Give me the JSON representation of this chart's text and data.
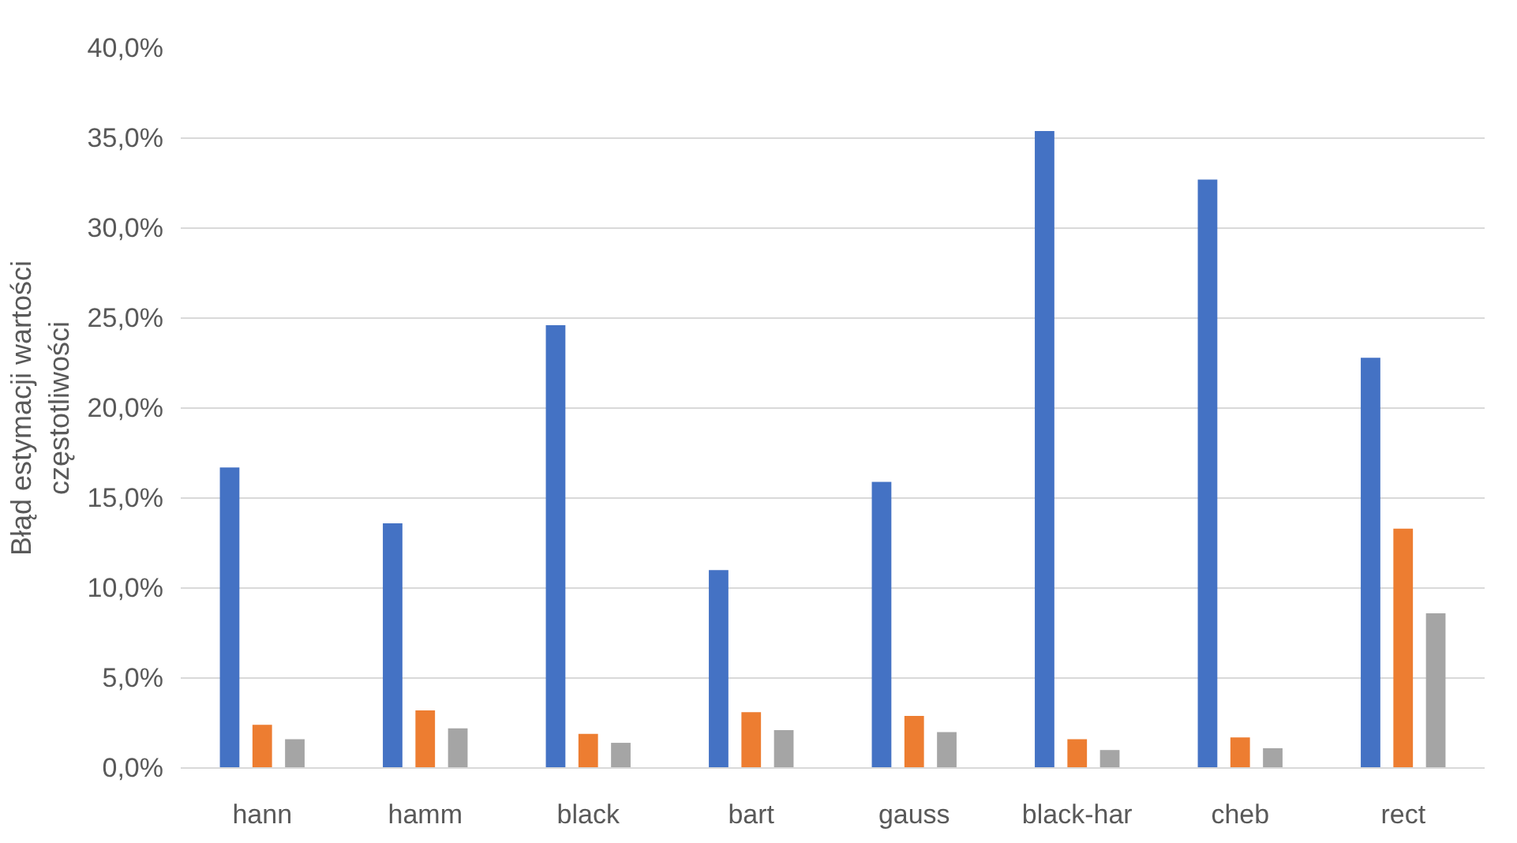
{
  "chart_data": {
    "type": "bar",
    "ylabel": "Błąd estymacji wartości częstotliwości",
    "categories": [
      "hann",
      "hamm",
      "black",
      "bart",
      "gauss",
      "black-har",
      "cheb",
      "rect"
    ],
    "series": [
      {
        "color": "#4472c4",
        "values": [
          16.7,
          13.6,
          24.6,
          11.0,
          15.9,
          35.4,
          32.7,
          22.8
        ]
      },
      {
        "color": "#ed7d31",
        "values": [
          2.4,
          3.2,
          1.9,
          3.1,
          2.9,
          1.6,
          1.7,
          13.3
        ]
      },
      {
        "color": "#a5a5a5",
        "values": [
          1.6,
          2.2,
          1.4,
          2.1,
          2.0,
          1.0,
          1.1,
          8.6
        ]
      }
    ],
    "ylim": [
      0,
      40
    ],
    "yticks": [
      {
        "value": 0,
        "label": "0,0%"
      },
      {
        "value": 5,
        "label": "5,0%"
      },
      {
        "value": 10,
        "label": "10,0%"
      },
      {
        "value": 15,
        "label": "15,0%"
      },
      {
        "value": 20,
        "label": "20,0%"
      },
      {
        "value": 25,
        "label": "25,0%"
      },
      {
        "value": 30,
        "label": "30,0%"
      },
      {
        "value": 35,
        "label": "35,0%"
      },
      {
        "value": 40,
        "label": "40,0%"
      }
    ],
    "grid": "y"
  }
}
